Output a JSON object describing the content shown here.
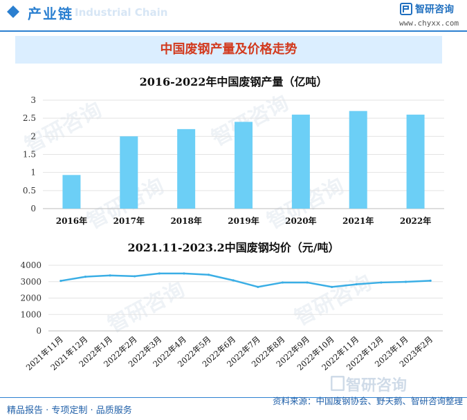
{
  "header": {
    "title": "产业链",
    "title_en": "Industrial Chain",
    "brand_name": "智研咨询",
    "brand_url": "www.chyxx.com",
    "accent_color": "#2a7fd0"
  },
  "banner": {
    "text": "中国废钢产量及价格走势",
    "bg_color": "#dbeeff",
    "text_color": "#d23a1e"
  },
  "chart_data": [
    {
      "type": "bar",
      "title": "2016-2022年中国废钢产量（亿吨）",
      "categories": [
        "2016年",
        "2017年",
        "2018年",
        "2019年",
        "2020年",
        "2021年",
        "2022年"
      ],
      "values": [
        0.93,
        2.0,
        2.2,
        2.4,
        2.6,
        2.7,
        2.6
      ],
      "ylim": [
        0,
        3
      ],
      "yticks": [
        "0",
        "0.5",
        "1",
        "1.5",
        "2",
        "2.5",
        "3"
      ],
      "grid": true,
      "bar_color": "#6ccff6"
    },
    {
      "type": "line",
      "title": "2021.11-2023.2中国废钢均价（元/吨）",
      "categories": [
        "2021年11月",
        "2021年12月",
        "2022年1月",
        "2022年2月",
        "2022年3月",
        "2022年4月",
        "2022年5月",
        "2022年6月",
        "2022年7月",
        "2022年8月",
        "2022年9月",
        "2022年10月",
        "2022年11月",
        "2022年12月",
        "2023年1月",
        "2023年2月"
      ],
      "values": [
        3050,
        3300,
        3380,
        3330,
        3500,
        3500,
        3420,
        3080,
        2680,
        2950,
        2950,
        2680,
        2840,
        2950,
        2990,
        3060
      ],
      "ylim": [
        0,
        4000
      ],
      "yticks": [
        "0",
        "1000",
        "2000",
        "3000",
        "4000"
      ],
      "grid": true,
      "line_color": "#3aaee5"
    }
  ],
  "footer": {
    "left": "精品报告 · 专项定制 · 品质服务",
    "source": "资料来源：中国废钢协会、野天鹅、智研咨询整理"
  },
  "watermark": {
    "text": "智研咨询"
  }
}
